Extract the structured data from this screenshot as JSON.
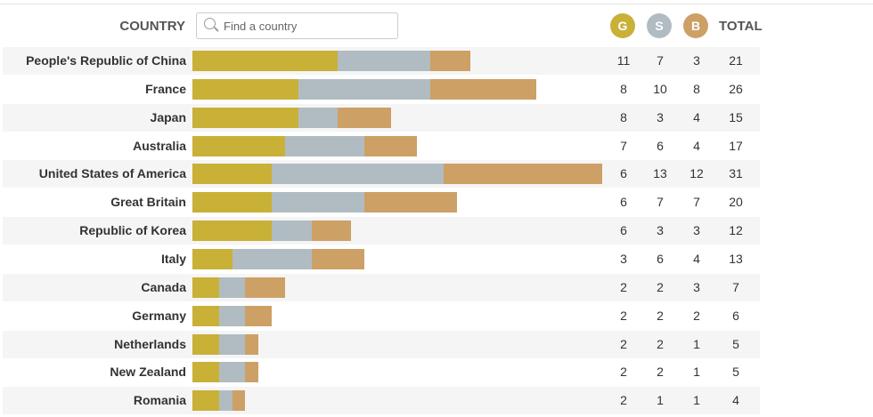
{
  "header": {
    "country_label": "COUNTRY",
    "search_placeholder": "Find a country",
    "gold": "G",
    "silver": "S",
    "bronze": "B",
    "total": "TOTAL"
  },
  "colors": {
    "gold": "#c9b037",
    "silver": "#b0bcc2",
    "bronze": "#cda066"
  },
  "rows": [
    {
      "country": "People's Republic of China",
      "gold": 11,
      "silver": 7,
      "bronze": 3,
      "total": 21
    },
    {
      "country": "France",
      "gold": 8,
      "silver": 10,
      "bronze": 8,
      "total": 26
    },
    {
      "country": "Japan",
      "gold": 8,
      "silver": 3,
      "bronze": 4,
      "total": 15
    },
    {
      "country": "Australia",
      "gold": 7,
      "silver": 6,
      "bronze": 4,
      "total": 17
    },
    {
      "country": "United States of America",
      "gold": 6,
      "silver": 13,
      "bronze": 12,
      "total": 31
    },
    {
      "country": "Great Britain",
      "gold": 6,
      "silver": 7,
      "bronze": 7,
      "total": 20
    },
    {
      "country": "Republic of Korea",
      "gold": 6,
      "silver": 3,
      "bronze": 3,
      "total": 12
    },
    {
      "country": "Italy",
      "gold": 3,
      "silver": 6,
      "bronze": 4,
      "total": 13
    },
    {
      "country": "Canada",
      "gold": 2,
      "silver": 2,
      "bronze": 3,
      "total": 7
    },
    {
      "country": "Germany",
      "gold": 2,
      "silver": 2,
      "bronze": 2,
      "total": 6
    },
    {
      "country": "Netherlands",
      "gold": 2,
      "silver": 2,
      "bronze": 1,
      "total": 5
    },
    {
      "country": "New Zealand",
      "gold": 2,
      "silver": 2,
      "bronze": 1,
      "total": 5
    },
    {
      "country": "Romania",
      "gold": 2,
      "silver": 1,
      "bronze": 1,
      "total": 4
    }
  ]
}
